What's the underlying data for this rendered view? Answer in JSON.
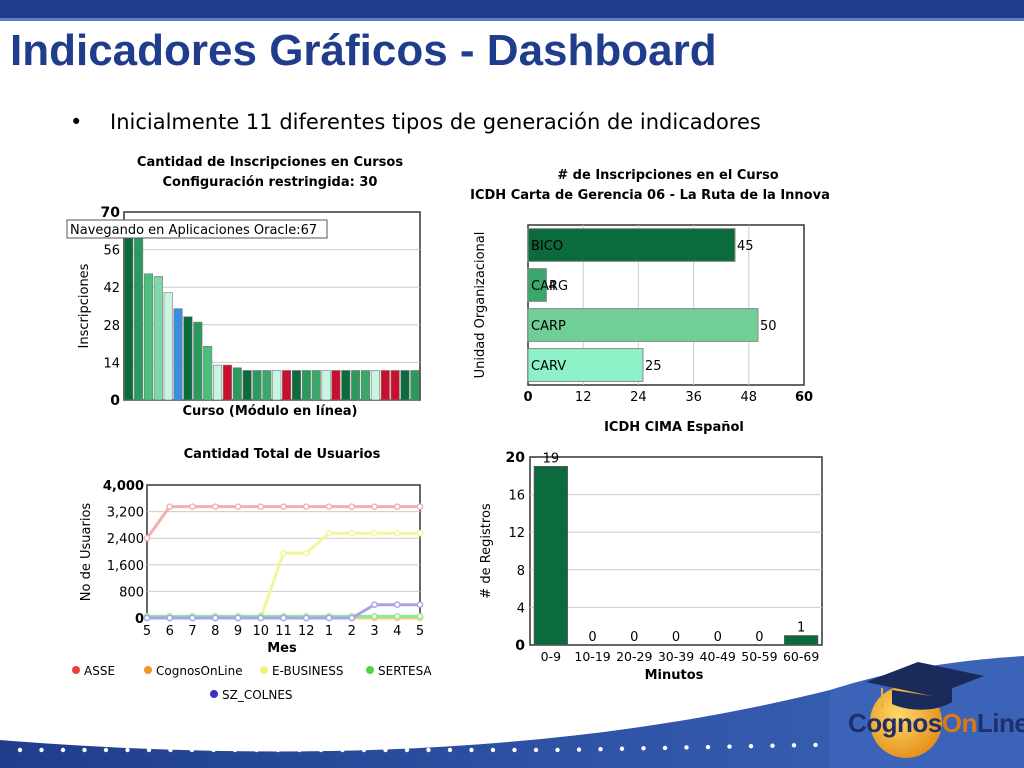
{
  "page": {
    "title": "Indicadores Gráficos - Dashboard",
    "bullet": "Inicialmente 11 diferentes tipos de generación de indicadores",
    "logo_part1": "Cognos",
    "logo_part2": "On",
    "logo_part3": "Line",
    "logo_reg": "®"
  },
  "colors": {
    "title": "#1f3d8c",
    "dark_green": "#0c6b3c",
    "mid_green": "#3aa86b",
    "light_green": "#6fcf97",
    "mint": "#8ef2c8",
    "grid": "#cccccc"
  },
  "chart_data": [
    {
      "type": "bar",
      "title": "Cantidad de Inscripciones en Cursos",
      "subtitle": "Configuración restringida: 30",
      "xlabel": "Curso (Módulo en línea)",
      "ylabel": "Inscripciones",
      "ylim": [
        0,
        70
      ],
      "yticks": [
        "0",
        "14",
        "28",
        "42",
        "56",
        "70"
      ],
      "tooltip": "Navegando en Aplicaciones Oracle:67",
      "values": [
        67,
        67,
        47,
        46,
        40,
        34,
        31,
        29,
        20,
        13,
        13,
        12,
        11,
        11,
        11,
        11,
        11,
        11,
        11,
        11,
        11,
        11,
        11,
        11,
        11,
        11,
        11,
        11,
        11,
        11
      ],
      "colors": [
        "#0c6b3c",
        "#2a9a5e",
        "#4cbf7f",
        "#7dd8a6",
        "#c9f5e0",
        "#3a8ee0",
        "#0c6b3c",
        "#2a9a5e",
        "#4cbf7f",
        "#c9f5e0",
        "#c8102e",
        "#2a9a5e",
        "#0c6b3c",
        "#2a9a5e",
        "#3aa86b",
        "#c9f5e0",
        "#c8102e",
        "#0c6b3c",
        "#2a9a5e",
        "#3aa86b",
        "#c9f5e0",
        "#c8102e",
        "#0c6b3c",
        "#2a9a5e",
        "#3aa86b",
        "#c9f5e0",
        "#c8102e",
        "#c8102e",
        "#0c6b3c",
        "#2a9a5e"
      ]
    },
    {
      "type": "bar",
      "orientation": "horizontal",
      "title": "# de Inscripciones en el Curso",
      "subtitle": "ICDH Carta de Gerencia 06 - La Ruta de la Innova",
      "ylabel": "Unidad Organizacional",
      "categories": [
        "BICO",
        "CARG",
        "CARP",
        "CARV"
      ],
      "values": [
        45,
        4,
        50,
        25
      ],
      "labels": [
        "45",
        "4",
        "50",
        "25"
      ],
      "colors": [
        "#0c6b3c",
        "#3aa86b",
        "#6fcf97",
        "#8ef2c8"
      ],
      "xlim": [
        0,
        60
      ],
      "xticks": [
        "0",
        "12",
        "24",
        "36",
        "48",
        "60"
      ]
    },
    {
      "type": "line",
      "title": "Cantidad Total de Usuarios",
      "xlabel": "Mes",
      "ylabel": "No de Usuarios",
      "x": [
        "5",
        "6",
        "7",
        "8",
        "9",
        "10",
        "11",
        "12",
        "1",
        "2",
        "3",
        "4",
        "5"
      ],
      "ylim": [
        0,
        4000
      ],
      "yticks": [
        "0",
        "800",
        "1,600",
        "2,400",
        "3,200",
        "4,000"
      ],
      "series": [
        {
          "name": "ASSE",
          "color": "#e8423c",
          "line": "#f0b0b0",
          "values": [
            2400,
            3350,
            3350,
            3350,
            3350,
            3350,
            3350,
            3350,
            3350,
            3350,
            3350,
            3350,
            3350
          ]
        },
        {
          "name": "CognosOnLine",
          "color": "#f0962a",
          "line": "#f7c98a",
          "values": [
            0,
            0,
            0,
            0,
            0,
            0,
            0,
            0,
            0,
            0,
            0,
            0,
            0
          ]
        },
        {
          "name": "E-BUSINESS",
          "color": "#f2f27a",
          "line": "#f4f49a",
          "values": [
            0,
            0,
            0,
            0,
            0,
            0,
            1950,
            1950,
            2550,
            2550,
            2550,
            2550,
            2550
          ]
        },
        {
          "name": "SERTESA",
          "color": "#4cd44c",
          "line": "#8ee88e",
          "values": [
            50,
            50,
            50,
            50,
            50,
            50,
            50,
            50,
            50,
            50,
            50,
            50,
            50
          ]
        },
        {
          "name": "SZ_COLNES",
          "color": "#3a2fd0",
          "line": "#a9a2ea",
          "values": [
            0,
            0,
            0,
            0,
            0,
            0,
            0,
            0,
            0,
            0,
            400,
            400,
            400
          ]
        }
      ]
    },
    {
      "type": "bar",
      "title": "ICDH CIMA Español",
      "xlabel": "Minutos",
      "ylabel": "# de Registros",
      "categories": [
        "0-9",
        "10-19",
        "20-29",
        "30-39",
        "40-49",
        "50-59",
        "60-69"
      ],
      "values": [
        19,
        0,
        0,
        0,
        0,
        0,
        1
      ],
      "labels": [
        "19",
        "0",
        "0",
        "0",
        "0",
        "0",
        "1"
      ],
      "ylim": [
        0,
        20
      ],
      "yticks": [
        "0",
        "4",
        "8",
        "12",
        "16",
        "20"
      ],
      "color": "#0c6b3c"
    }
  ]
}
